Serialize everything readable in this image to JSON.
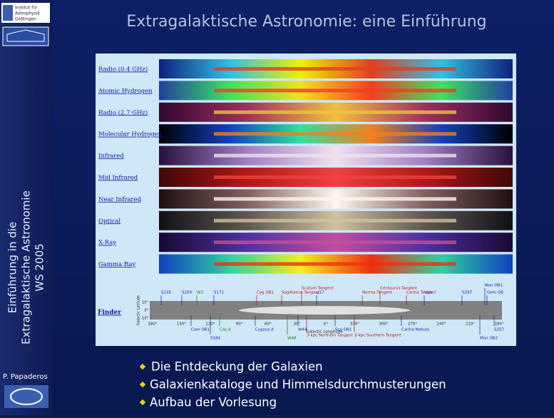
{
  "header": {
    "title": "Extragalaktische Astronomie: eine Einführung"
  },
  "sidebar": {
    "institute": [
      "Institut für",
      "Astrophysik",
      "Göttingen"
    ],
    "course": [
      "Einführung in die",
      "Extragalaktische Astronomie",
      "WS 2005"
    ],
    "author": "P. Papaderos"
  },
  "panel": {
    "bands": [
      "Radio (0.4 GHz)",
      "Atomic Hydrogen",
      "Radio (2.7 GHz)",
      "Molecular Hydrogen",
      "Infrared",
      "Mid Infrared",
      "Near Infrared",
      "Optical",
      "X-Ray",
      "Gamma Ray"
    ],
    "finder": {
      "label": "Finder",
      "axis_x": "Galactic Longitude",
      "axis_y": "Galactic Latitude",
      "lat_ticks": [
        "10°",
        "0°",
        "-10°"
      ],
      "lon_ticks": [
        "180°",
        "150°",
        "120°",
        "90°",
        "60°",
        "30°",
        "0°",
        "330°",
        "300°",
        "270°",
        "240°",
        "210°",
        "180°"
      ],
      "objects": [
        "S235",
        "S209",
        "W3",
        "S171",
        "Cyg OB1",
        "Sagittarius Tangent",
        "Scutum Tangent",
        "μ17",
        "Norma Tangent",
        "Centaurus Tangent",
        "Carina Tangent",
        "Vela",
        "S297",
        "Mon OB1",
        "Gem OB",
        "Cam OB1",
        "Cas A",
        "Cygnus-X",
        "W44",
        "W48",
        "Sco OB1",
        "3-kpc Northern Tangent",
        "3-kpc Southern Tangent",
        "Carina Nebula",
        "Mon OB2",
        "S257",
        "S184"
      ]
    }
  },
  "bullets": [
    "Die Entdeckung der Galaxien",
    "Galaxienkataloge und Himmelsdurchmusterungen",
    "Aufbau der Vorlesung"
  ]
}
